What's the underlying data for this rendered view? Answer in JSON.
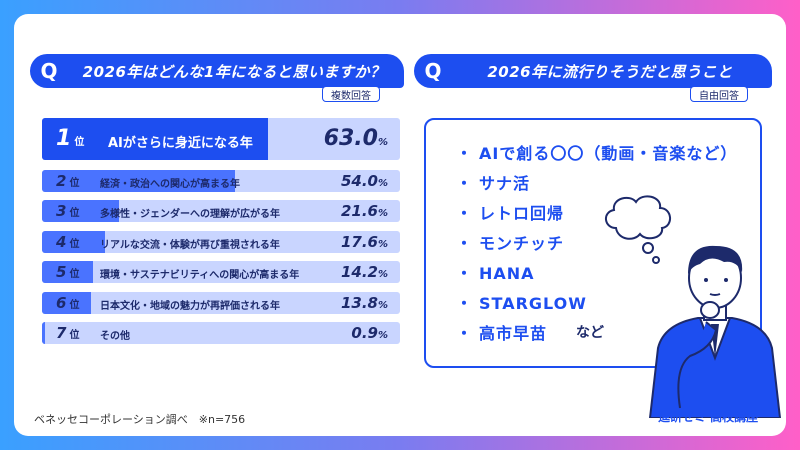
{
  "left_panel": {
    "q_mark": "Q",
    "question": "2026年はどんな1年になると思いますか？",
    "tag": "複数回答"
  },
  "right_panel": {
    "q_mark": "Q",
    "question": "2026年に流行りそうだと思うこと",
    "tag": "自由回答",
    "answers": [
      "AIで創る〇〇（動画・音楽など）",
      "サナ活",
      "レトロ回帰",
      "モンチッチ",
      "HANA",
      "STARGLOW",
      "高市早苗"
    ],
    "etc": "など"
  },
  "chart_data": {
    "type": "bar",
    "orientation": "horizontal",
    "ranks": [
      "1位",
      "2位",
      "3位",
      "4位",
      "5位",
      "6位",
      "7位"
    ],
    "categories": [
      "AIがさらに身近になる年",
      "経済・政治への関心が高まる年",
      "多様性・ジェンダーへの理解が広がる年",
      "リアルな交流・体験が再び重視される年",
      "環境・サステナビリティへの関心が高まる年",
      "日本文化・地域の魅力が再評価される年",
      "その他"
    ],
    "values": [
      63.0,
      54.0,
      21.6,
      17.6,
      14.2,
      13.8,
      0.9
    ],
    "value_labels": [
      "63.0%",
      "54.0%",
      "21.6%",
      "17.6%",
      "14.2%",
      "13.8%",
      "0.9%"
    ],
    "xlim": [
      0,
      100
    ]
  },
  "footer": {
    "source": "ベネッセコーポレーション調べ　※n=756",
    "brand": "進研ゼミ 高校講座"
  },
  "colors": {
    "primary": "#1d4ef0",
    "bar": "#4a73ff",
    "bar_bg": "#c9d5ff",
    "text_dark": "#1d2a6b"
  }
}
